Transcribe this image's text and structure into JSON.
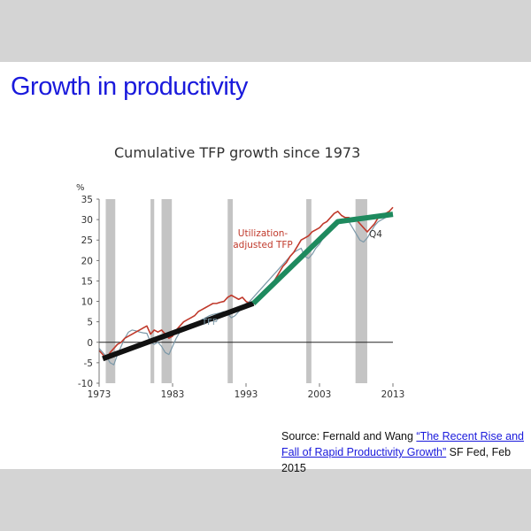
{
  "slide": {
    "title": "Growth in productivity",
    "source": {
      "prefix": "Source: Fernald and Wang ",
      "link_text": "“The Recent Rise and Fall of Rapid Productivity Growth”",
      "suffix": " SF Fed, Feb 2015"
    }
  },
  "colors": {
    "background": "#d4d4d4",
    "title": "#1a1adc",
    "util_series": "#c0392b",
    "tfp_series": "#7b98a8",
    "recession": "#c4c4c4",
    "trend1": "#111111",
    "trend2": "#1e8a5e"
  },
  "chart_data": {
    "type": "line",
    "title": "Cumulative TFP growth since 1973",
    "ylabel": "%",
    "xlim": [
      1973,
      2013
    ],
    "ylim": [
      -10,
      35
    ],
    "xticks": [
      1973,
      1983,
      1993,
      2003,
      2013
    ],
    "yticks": [
      -10,
      -5,
      0,
      5,
      10,
      15,
      20,
      25,
      30,
      35
    ],
    "grid": false,
    "zero_line": true,
    "recessions": [
      [
        1973.9,
        1975.2
      ],
      [
        1980.0,
        1980.5
      ],
      [
        1981.5,
        1982.9
      ],
      [
        1990.5,
        1991.2
      ],
      [
        2001.2,
        2001.9
      ],
      [
        2007.9,
        2009.5
      ]
    ],
    "annotations": {
      "util_label": [
        "Utilization-",
        "adjusted TFP"
      ],
      "tfp_label": "TFP",
      "end_label": "Q4"
    },
    "series": [
      {
        "name": "Utilization-adjusted TFP",
        "x": [
          1973,
          1973.5,
          1974,
          1974.5,
          1975,
          1975.5,
          1976,
          1976.5,
          1977,
          1977.5,
          1978,
          1978.5,
          1979,
          1979.5,
          1980,
          1980.5,
          1981,
          1981.5,
          1982,
          1982.5,
          1983,
          1983.5,
          1984,
          1984.5,
          1985,
          1985.5,
          1986,
          1986.5,
          1987,
          1987.5,
          1988,
          1988.5,
          1989,
          1989.5,
          1990,
          1990.5,
          1991,
          1991.5,
          1992,
          1992.5,
          1993,
          1993.5,
          1994,
          1994.5,
          1995,
          1995.5,
          1996,
          1996.5,
          1997,
          1997.5,
          1998,
          1998.5,
          1999,
          1999.5,
          2000,
          2000.5,
          2001,
          2001.5,
          2002,
          2002.5,
          2003,
          2003.5,
          2004,
          2004.5,
          2005,
          2005.5,
          2006,
          2006.5,
          2007,
          2007.5,
          2008,
          2008.5,
          2009,
          2009.5,
          2010,
          2010.5,
          2011,
          2011.5,
          2012,
          2012.5,
          2013
        ],
        "values": [
          -2,
          -3,
          -4,
          -2.5,
          -1.5,
          -0.5,
          0,
          1,
          1.5,
          2,
          2.5,
          3,
          3.5,
          4,
          2,
          3,
          2.5,
          3,
          2,
          1,
          1.5,
          3,
          4,
          5,
          5.5,
          6,
          6.5,
          7.5,
          8,
          8.5,
          9,
          9.5,
          9.5,
          9.8,
          10,
          11,
          11.5,
          11,
          10.5,
          11,
          10,
          9.5,
          9.5,
          10,
          11,
          11.5,
          13,
          14,
          15.5,
          17,
          18.5,
          19.5,
          21,
          22,
          23.5,
          25,
          25.5,
          26,
          27,
          27.5,
          28,
          29,
          29.5,
          30.5,
          31.5,
          32,
          31,
          30.5,
          30.5,
          30,
          30,
          29,
          28,
          27,
          28,
          29,
          30.5,
          31,
          31.5,
          32,
          33
        ]
      },
      {
        "name": "TFP",
        "x": [
          1973,
          1973.5,
          1974,
          1974.5,
          1975,
          1975.5,
          1976,
          1976.5,
          1977,
          1977.5,
          1978,
          1978.5,
          1979,
          1979.5,
          1980,
          1980.5,
          1981,
          1981.5,
          1982,
          1982.5,
          1983,
          1983.5,
          1984,
          1984.5,
          1985,
          1985.5,
          1986,
          1986.5,
          1987,
          1987.5,
          1988,
          1988.5,
          1989,
          1989.5,
          1990,
          1990.5,
          1991,
          1991.5,
          1992,
          1992.5,
          1993,
          1993.5,
          1994,
          1994.5,
          1995,
          1995.5,
          1996,
          1996.5,
          1997,
          1997.5,
          1998,
          1998.5,
          1999,
          1999.5,
          2000,
          2000.5,
          2001,
          2001.5,
          2002,
          2002.5,
          2003,
          2003.5,
          2004,
          2004.5,
          2005,
          2005.5,
          2006,
          2006.5,
          2007,
          2007.5,
          2008,
          2008.5,
          2009,
          2009.5,
          2010,
          2010.5,
          2011,
          2011.5,
          2012,
          2012.5,
          2013
        ],
        "values": [
          -1.5,
          -2.5,
          -3.5,
          -5,
          -5.5,
          -3,
          -1,
          1,
          2.5,
          3,
          2.8,
          2.5,
          2.3,
          2.2,
          0,
          -0.5,
          0,
          -1,
          -2.5,
          -3,
          -1,
          1,
          2.5,
          3.5,
          4,
          4.5,
          4.5,
          5,
          5.5,
          6,
          6.5,
          6.8,
          7,
          7.2,
          7.5,
          7,
          6,
          6.5,
          7.5,
          8.5,
          9.5,
          10,
          11,
          12,
          13,
          14,
          15,
          16,
          17,
          18,
          19,
          20,
          21,
          22,
          22.5,
          23,
          21,
          20.5,
          21.5,
          23,
          24,
          25.5,
          27,
          28,
          29,
          29.5,
          30,
          30,
          29.5,
          28,
          26.5,
          25,
          24.5,
          25.5,
          27,
          28.5,
          29.5,
          30,
          30.5,
          31,
          31
        ]
      }
    ],
    "trend_lines": [
      {
        "x": [
          1973.5,
          1994
        ],
        "values": [
          -4,
          9.5
        ]
      },
      {
        "x": [
          1994,
          2005.5,
          2013
        ],
        "values": [
          9.5,
          29.5,
          31.3
        ]
      }
    ]
  }
}
